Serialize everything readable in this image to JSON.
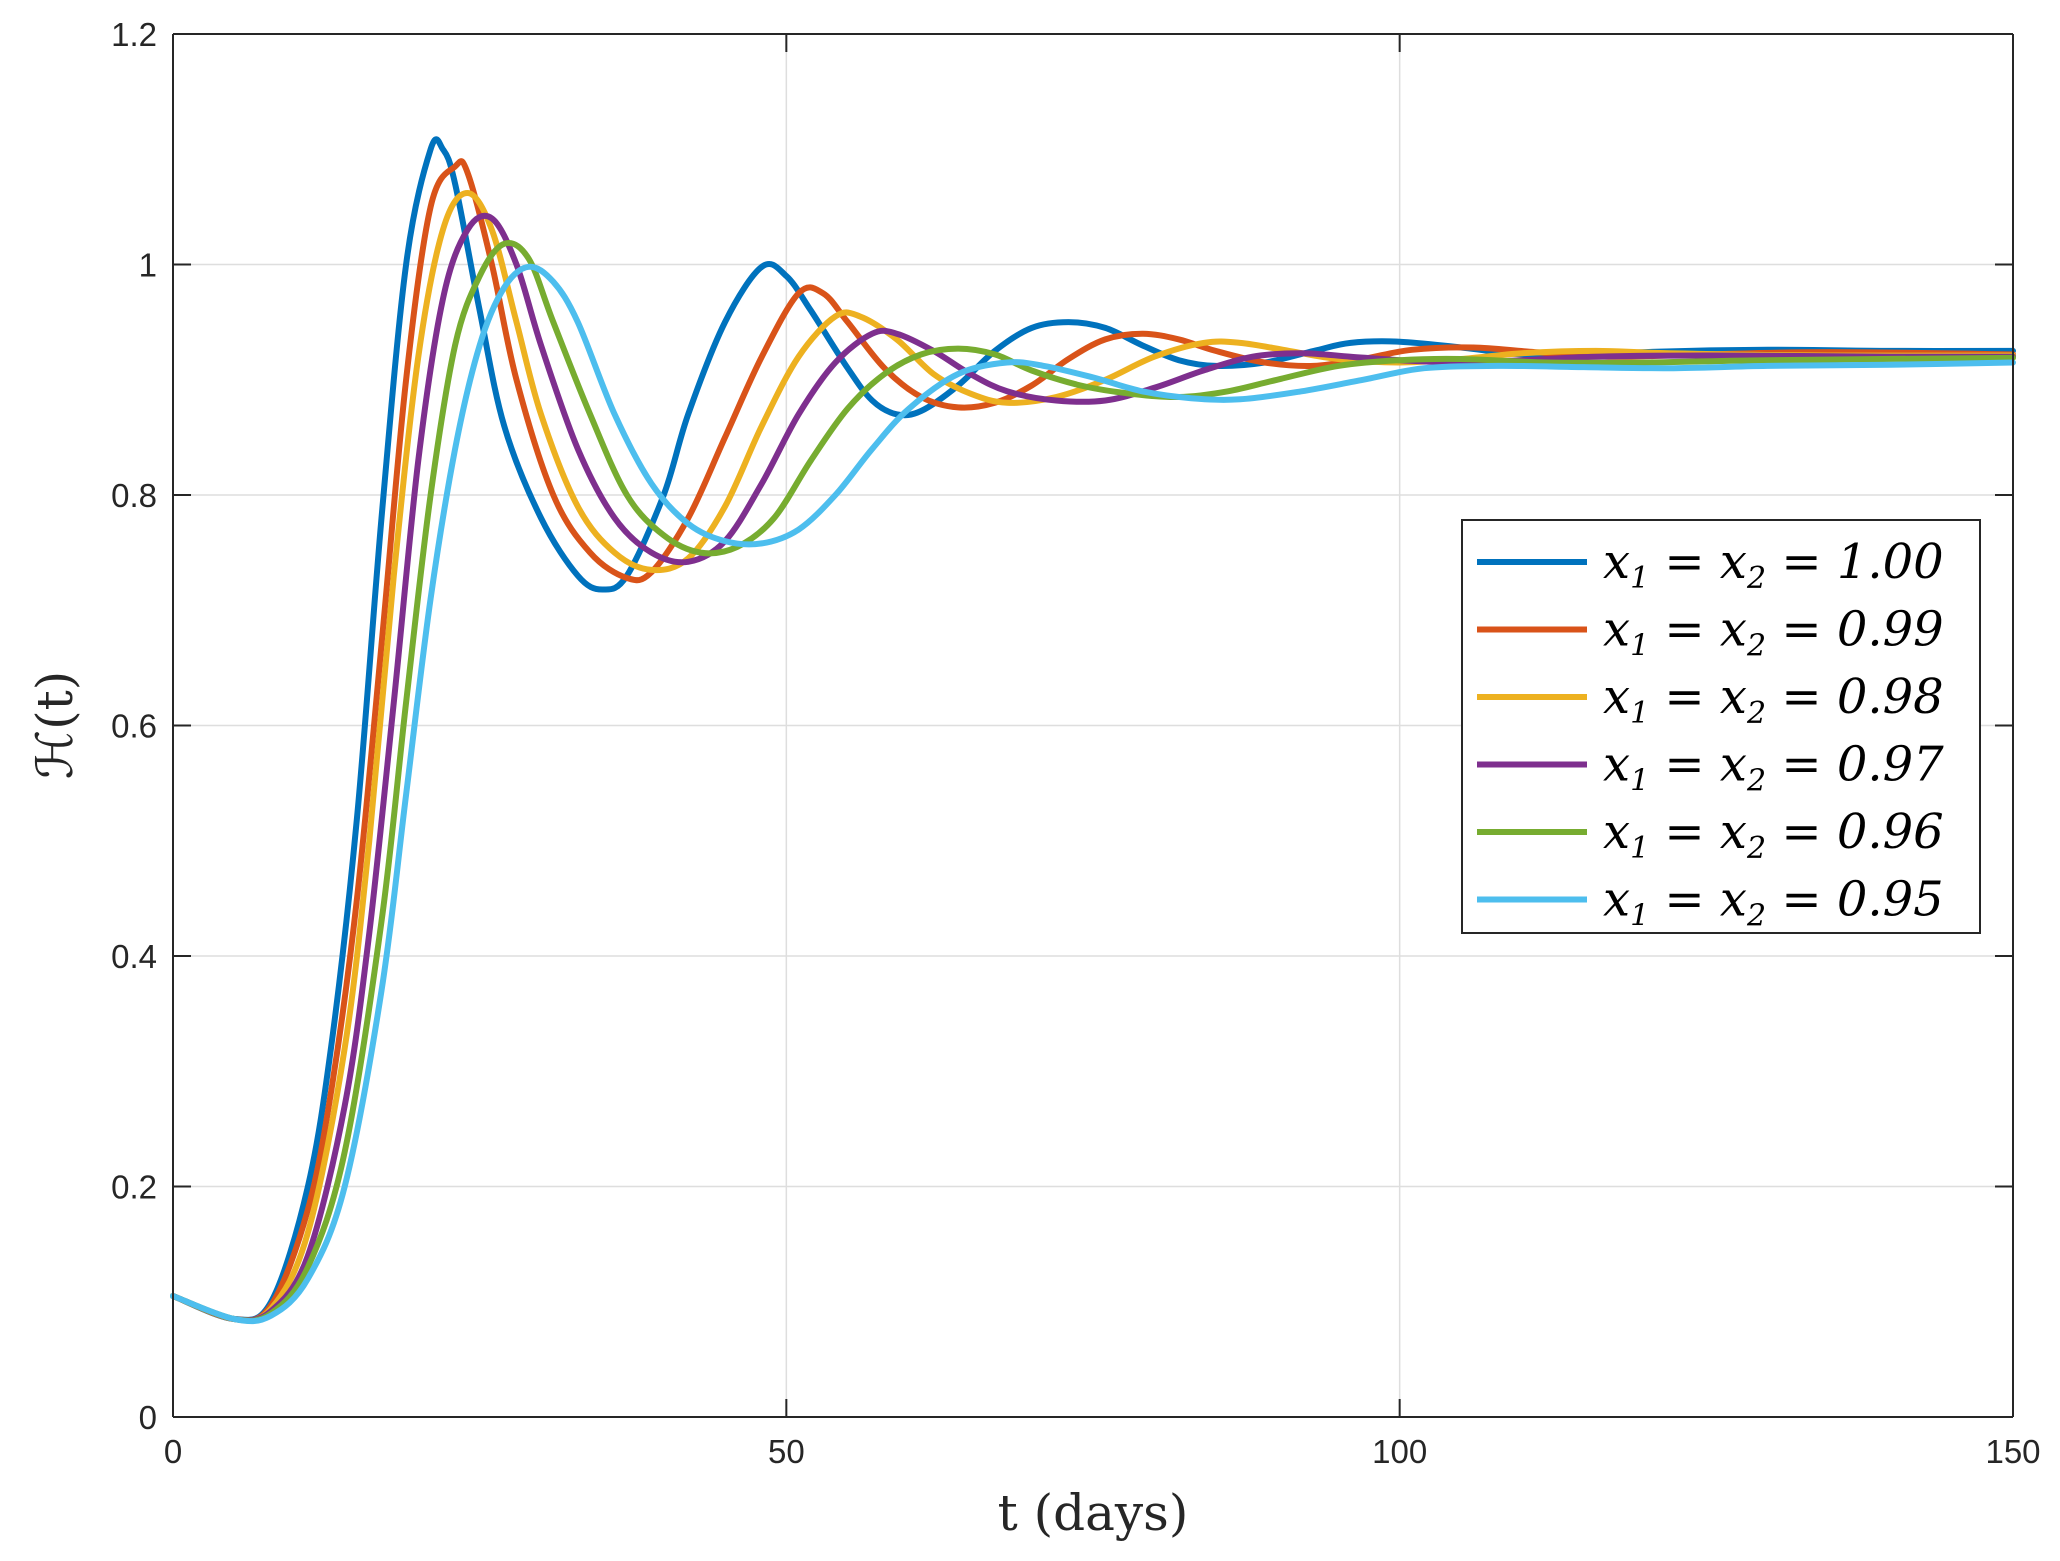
{
  "chart_data": {
    "type": "line",
    "title": "",
    "xlabel": "t (days)",
    "ylabel": "ℋ(t)",
    "xlim": [
      0,
      150
    ],
    "ylim": [
      0,
      1.2
    ],
    "xticks": [
      0,
      50,
      100,
      150
    ],
    "yticks": [
      0,
      0.2,
      0.4,
      0.6,
      0.8,
      1,
      1.2
    ],
    "xtick_labels": [
      "0",
      "50",
      "100",
      "150"
    ],
    "ytick_labels": [
      "0",
      "0.2",
      "0.4",
      "0.6",
      "0.8",
      "1",
      "1.2"
    ],
    "grid": true,
    "legend_position": "center-right",
    "series": [
      {
        "name": "x1 = x2 = 1.00",
        "x_value": "1.00",
        "color": "#0072BD",
        "points": [
          [
            0,
            0.105
          ],
          [
            5,
            0.085
          ],
          [
            8,
            0.1
          ],
          [
            11,
            0.2
          ],
          [
            13,
            0.33
          ],
          [
            15,
            0.52
          ],
          [
            17,
            0.78
          ],
          [
            19,
            1.0
          ],
          [
            21,
            1.1
          ],
          [
            22,
            1.1
          ],
          [
            23,
            1.07
          ],
          [
            25,
            0.96
          ],
          [
            27,
            0.86
          ],
          [
            30,
            0.78
          ],
          [
            33,
            0.73
          ],
          [
            35,
            0.718
          ],
          [
            37,
            0.73
          ],
          [
            40,
            0.8
          ],
          [
            42,
            0.87
          ],
          [
            45,
            0.95
          ],
          [
            48,
            0.998
          ],
          [
            50,
            0.99
          ],
          [
            52,
            0.96
          ],
          [
            55,
            0.91
          ],
          [
            57,
            0.882
          ],
          [
            59,
            0.87
          ],
          [
            61,
            0.873
          ],
          [
            64,
            0.895
          ],
          [
            67,
            0.925
          ],
          [
            70,
            0.945
          ],
          [
            73,
            0.95
          ],
          [
            76,
            0.945
          ],
          [
            79,
            0.93
          ],
          [
            82,
            0.917
          ],
          [
            85,
            0.912
          ],
          [
            89,
            0.915
          ],
          [
            93,
            0.925
          ],
          [
            96,
            0.932
          ],
          [
            100,
            0.933
          ],
          [
            105,
            0.928
          ],
          [
            110,
            0.922
          ],
          [
            115,
            0.921
          ],
          [
            120,
            0.924
          ],
          [
            130,
            0.926
          ],
          [
            140,
            0.925
          ],
          [
            150,
            0.925
          ]
        ]
      },
      {
        "name": "x1 = x2 = 0.99",
        "x_value": "0.99",
        "color": "#D95319",
        "points": [
          [
            0,
            0.105
          ],
          [
            5,
            0.085
          ],
          [
            8,
            0.097
          ],
          [
            11,
            0.18
          ],
          [
            13,
            0.29
          ],
          [
            15,
            0.45
          ],
          [
            17,
            0.67
          ],
          [
            19,
            0.9
          ],
          [
            21,
            1.05
          ],
          [
            23,
            1.085
          ],
          [
            24,
            1.08
          ],
          [
            26,
            1.0
          ],
          [
            28,
            0.9
          ],
          [
            31,
            0.8
          ],
          [
            34,
            0.75
          ],
          [
            37,
            0.728
          ],
          [
            39,
            0.733
          ],
          [
            42,
            0.78
          ],
          [
            45,
            0.85
          ],
          [
            48,
            0.92
          ],
          [
            51,
            0.975
          ],
          [
            53,
            0.975
          ],
          [
            55,
            0.95
          ],
          [
            58,
            0.91
          ],
          [
            61,
            0.885
          ],
          [
            64,
            0.876
          ],
          [
            67,
            0.88
          ],
          [
            70,
            0.895
          ],
          [
            73,
            0.918
          ],
          [
            76,
            0.935
          ],
          [
            79,
            0.94
          ],
          [
            82,
            0.935
          ],
          [
            85,
            0.925
          ],
          [
            89,
            0.915
          ],
          [
            93,
            0.912
          ],
          [
            97,
            0.918
          ],
          [
            101,
            0.926
          ],
          [
            106,
            0.928
          ],
          [
            111,
            0.924
          ],
          [
            117,
            0.92
          ],
          [
            125,
            0.922
          ],
          [
            135,
            0.924
          ],
          [
            150,
            0.922
          ]
        ]
      },
      {
        "name": "x1 = x2 = 0.98",
        "x_value": "0.98",
        "color": "#EDB120",
        "points": [
          [
            0,
            0.105
          ],
          [
            5,
            0.085
          ],
          [
            8,
            0.094
          ],
          [
            11,
            0.16
          ],
          [
            14,
            0.32
          ],
          [
            16,
            0.5
          ],
          [
            18,
            0.73
          ],
          [
            20,
            0.92
          ],
          [
            22,
            1.03
          ],
          [
            24,
            1.062
          ],
          [
            26,
            1.03
          ],
          [
            28,
            0.95
          ],
          [
            30,
            0.87
          ],
          [
            33,
            0.79
          ],
          [
            36,
            0.75
          ],
          [
            39,
            0.735
          ],
          [
            42,
            0.745
          ],
          [
            45,
            0.79
          ],
          [
            48,
            0.86
          ],
          [
            51,
            0.92
          ],
          [
            54,
            0.955
          ],
          [
            56,
            0.955
          ],
          [
            59,
            0.935
          ],
          [
            62,
            0.905
          ],
          [
            65,
            0.888
          ],
          [
            68,
            0.88
          ],
          [
            72,
            0.885
          ],
          [
            76,
            0.9
          ],
          [
            80,
            0.92
          ],
          [
            84,
            0.932
          ],
          [
            87,
            0.932
          ],
          [
            91,
            0.925
          ],
          [
            95,
            0.918
          ],
          [
            100,
            0.915
          ],
          [
            105,
            0.918
          ],
          [
            110,
            0.923
          ],
          [
            116,
            0.925
          ],
          [
            122,
            0.923
          ],
          [
            135,
            0.921
          ],
          [
            150,
            0.921
          ]
        ]
      },
      {
        "name": "x1 = x2 = 0.97",
        "x_value": "0.97",
        "color": "#7E2F8E",
        "points": [
          [
            0,
            0.105
          ],
          [
            5,
            0.085
          ],
          [
            8,
            0.092
          ],
          [
            11,
            0.14
          ],
          [
            14,
            0.27
          ],
          [
            16,
            0.42
          ],
          [
            18,
            0.62
          ],
          [
            20,
            0.83
          ],
          [
            22,
            0.97
          ],
          [
            24,
            1.03
          ],
          [
            26,
            1.04
          ],
          [
            28,
            1.0
          ],
          [
            30,
            0.93
          ],
          [
            33,
            0.84
          ],
          [
            36,
            0.78
          ],
          [
            39,
            0.75
          ],
          [
            42,
            0.742
          ],
          [
            45,
            0.76
          ],
          [
            48,
            0.81
          ],
          [
            51,
            0.87
          ],
          [
            54,
            0.915
          ],
          [
            57,
            0.94
          ],
          [
            59,
            0.94
          ],
          [
            62,
            0.925
          ],
          [
            65,
            0.905
          ],
          [
            68,
            0.89
          ],
          [
            72,
            0.882
          ],
          [
            76,
            0.882
          ],
          [
            80,
            0.893
          ],
          [
            84,
            0.908
          ],
          [
            88,
            0.92
          ],
          [
            92,
            0.923
          ],
          [
            96,
            0.92
          ],
          [
            100,
            0.917
          ],
          [
            105,
            0.915
          ],
          [
            110,
            0.917
          ],
          [
            116,
            0.92
          ],
          [
            125,
            0.921
          ],
          [
            140,
            0.92
          ],
          [
            150,
            0.92
          ]
        ]
      },
      {
        "name": "x1 = x2 = 0.96",
        "x_value": "0.96",
        "color": "#77AC30",
        "points": [
          [
            0,
            0.105
          ],
          [
            5,
            0.085
          ],
          [
            8,
            0.09
          ],
          [
            11,
            0.13
          ],
          [
            14,
            0.23
          ],
          [
            17,
            0.43
          ],
          [
            19,
            0.62
          ],
          [
            21,
            0.8
          ],
          [
            23,
            0.93
          ],
          [
            25,
            0.99
          ],
          [
            27,
            1.018
          ],
          [
            29,
            1.005
          ],
          [
            31,
            0.95
          ],
          [
            34,
            0.87
          ],
          [
            37,
            0.8
          ],
          [
            40,
            0.765
          ],
          [
            43,
            0.75
          ],
          [
            46,
            0.755
          ],
          [
            49,
            0.78
          ],
          [
            52,
            0.83
          ],
          [
            55,
            0.875
          ],
          [
            58,
            0.905
          ],
          [
            61,
            0.922
          ],
          [
            64,
            0.927
          ],
          [
            67,
            0.922
          ],
          [
            70,
            0.908
          ],
          [
            74,
            0.895
          ],
          [
            78,
            0.888
          ],
          [
            82,
            0.885
          ],
          [
            86,
            0.89
          ],
          [
            90,
            0.9
          ],
          [
            95,
            0.912
          ],
          [
            100,
            0.917
          ],
          [
            105,
            0.918
          ],
          [
            112,
            0.915
          ],
          [
            120,
            0.915
          ],
          [
            130,
            0.917
          ],
          [
            150,
            0.919
          ]
        ]
      },
      {
        "name": "x1 = x2 = 0.95",
        "x_value": "0.95",
        "color": "#4DBEEE",
        "points": [
          [
            0,
            0.105
          ],
          [
            5,
            0.085
          ],
          [
            8,
            0.088
          ],
          [
            11,
            0.12
          ],
          [
            14,
            0.2
          ],
          [
            17,
            0.37
          ],
          [
            19,
            0.54
          ],
          [
            21,
            0.71
          ],
          [
            23,
            0.84
          ],
          [
            25,
            0.93
          ],
          [
            27,
            0.98
          ],
          [
            29,
            0.998
          ],
          [
            31,
            0.985
          ],
          [
            33,
            0.95
          ],
          [
            36,
            0.87
          ],
          [
            39,
            0.81
          ],
          [
            42,
            0.775
          ],
          [
            45,
            0.76
          ],
          [
            48,
            0.758
          ],
          [
            51,
            0.77
          ],
          [
            54,
            0.8
          ],
          [
            57,
            0.84
          ],
          [
            60,
            0.875
          ],
          [
            64,
            0.905
          ],
          [
            68,
            0.915
          ],
          [
            71,
            0.912
          ],
          [
            75,
            0.902
          ],
          [
            79,
            0.89
          ],
          [
            83,
            0.884
          ],
          [
            87,
            0.883
          ],
          [
            92,
            0.89
          ],
          [
            97,
            0.9
          ],
          [
            102,
            0.91
          ],
          [
            108,
            0.912
          ],
          [
            115,
            0.911
          ],
          [
            122,
            0.91
          ],
          [
            130,
            0.912
          ],
          [
            140,
            0.913
          ],
          [
            150,
            0.915
          ]
        ]
      }
    ]
  }
}
